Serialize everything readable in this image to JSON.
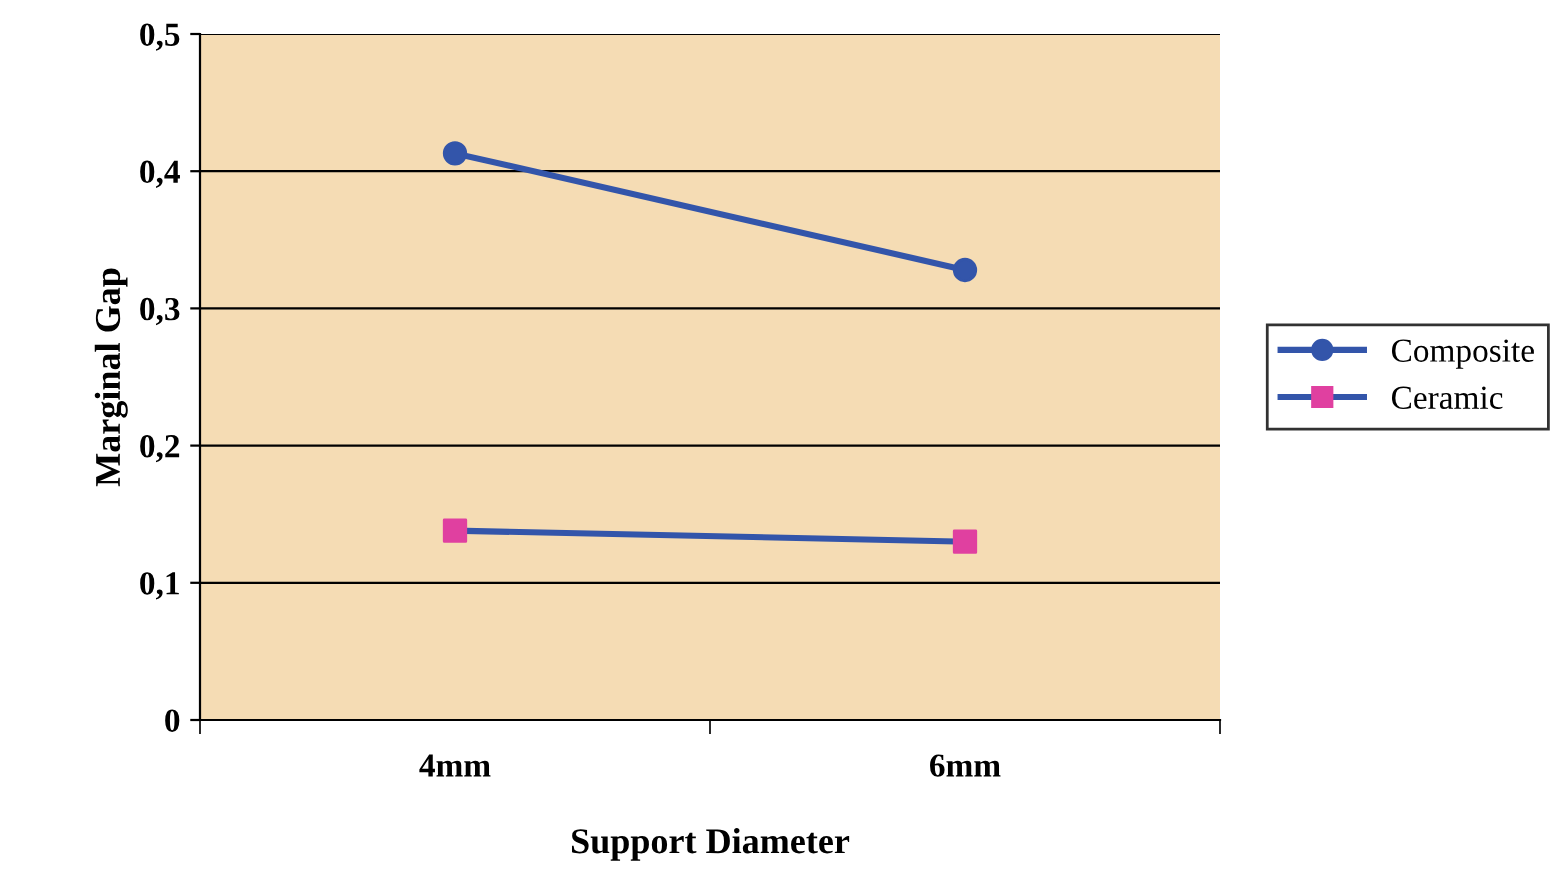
{
  "chart_data": {
    "type": "line",
    "xlabel": "Support Diameter",
    "ylabel": "Marginal Gap",
    "categories": [
      "4mm",
      "6mm"
    ],
    "series": [
      {
        "name": "Composite",
        "color": "#3355aa",
        "values": [
          0.413,
          0.328
        ],
        "marker": "circle"
      },
      {
        "name": "Ceramic",
        "color": "#3355aa",
        "colors": [
          "#e040a0",
          "#e040a0"
        ],
        "values": [
          0.138,
          0.13
        ],
        "marker": "square"
      }
    ],
    "ylim": [
      0,
      0.5
    ],
    "yticks": [
      0,
      {
        "value": 0.1,
        "label": "0,1"
      },
      {
        "value": 0.2,
        "label": "0,2"
      },
      {
        "value": 0.3,
        "label": "0,3"
      },
      {
        "value": 0.4,
        "label": "0,4"
      },
      {
        "value": 0.5,
        "label": "0,5"
      }
    ],
    "grid": "y",
    "legend": "right",
    "line_style": "solid"
  }
}
